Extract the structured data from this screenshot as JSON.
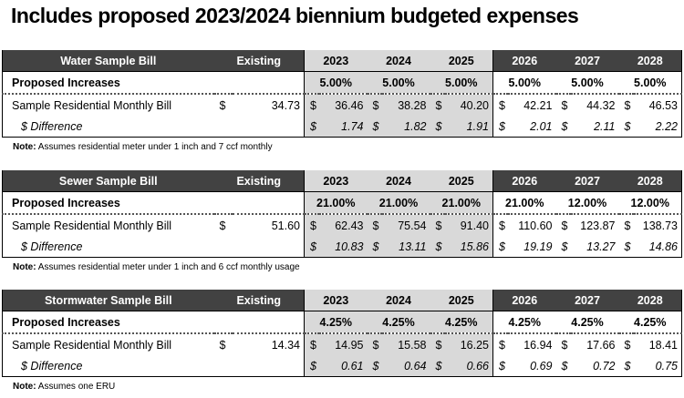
{
  "title": "Includes proposed 2023/2024 biennium budgeted expenses",
  "years": [
    "2023",
    "2024",
    "2025",
    "2026",
    "2027",
    "2028"
  ],
  "existing_label": "Existing",
  "proposed_label": "Proposed Increases",
  "bill_label": "Sample Residential Monthly Bill",
  "diff_label": "$ Difference",
  "dollar": "$",
  "note_prefix": "Note:",
  "sections": [
    {
      "name": "Water Sample Bill",
      "existing": "34.73",
      "increases": [
        "5.00%",
        "5.00%",
        "5.00%",
        "5.00%",
        "5.00%",
        "5.00%"
      ],
      "bills": [
        "36.46",
        "38.28",
        "40.20",
        "42.21",
        "44.32",
        "46.53"
      ],
      "diffs": [
        "1.74",
        "1.82",
        "1.91",
        "2.01",
        "2.11",
        "2.22"
      ],
      "note": " Assumes residential meter under 1 inch and 7 ccf monthly"
    },
    {
      "name": "Sewer Sample Bill",
      "existing": "51.60",
      "increases": [
        "21.00%",
        "21.00%",
        "21.00%",
        "21.00%",
        "12.00%",
        "12.00%"
      ],
      "bills": [
        "62.43",
        "75.54",
        "91.40",
        "110.60",
        "123.87",
        "138.73"
      ],
      "diffs": [
        "10.83",
        "13.11",
        "15.86",
        "19.19",
        "13.27",
        "14.86"
      ],
      "note": " Assumes residential meter under 1 inch and 6 ccf monthly usage"
    },
    {
      "name": "Stormwater Sample Bill",
      "existing": "14.34",
      "increases": [
        "4.25%",
        "4.25%",
        "4.25%",
        "4.25%",
        "4.25%",
        "4.25%"
      ],
      "bills": [
        "14.95",
        "15.58",
        "16.25",
        "16.94",
        "17.66",
        "18.41"
      ],
      "diffs": [
        "0.61",
        "0.64",
        "0.66",
        "0.69",
        "0.72",
        "0.75"
      ],
      "note": " Assumes one ERU"
    }
  ]
}
